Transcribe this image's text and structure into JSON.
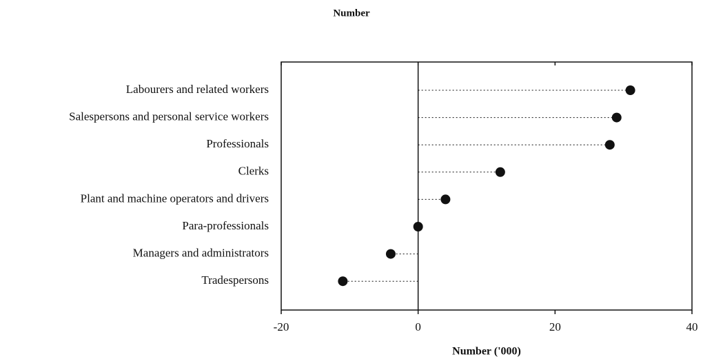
{
  "chart_data": {
    "type": "dot",
    "title": "Number",
    "xlabel": "Number ('000)",
    "categories": [
      "Labourers and related workers",
      "Salespersons and personal service workers",
      "Professionals",
      "Clerks",
      "Plant and machine operators and drivers",
      "Para-professionals",
      "Managers and administrators",
      "Tradespersons"
    ],
    "values": [
      31,
      29,
      28,
      12,
      4,
      0,
      -4,
      -11
    ],
    "color": "#111111",
    "xlim": [
      -20,
      40
    ],
    "xticks": [
      -20,
      0,
      20,
      40
    ]
  }
}
